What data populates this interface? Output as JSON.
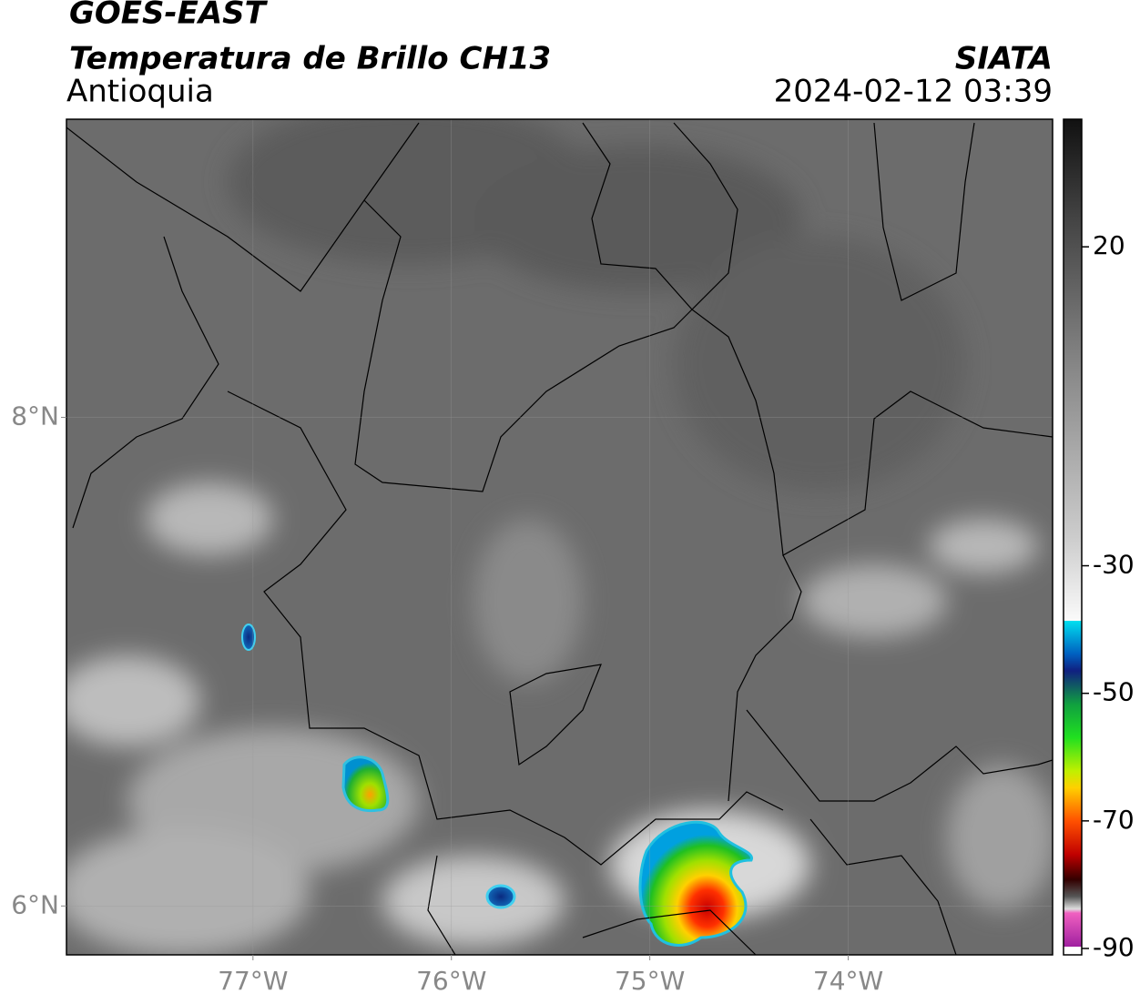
{
  "header": {
    "title": "GOES-EAST",
    "subtitle": "Temperatura de Brillo CH13",
    "region": "Antioquia",
    "source": "SIATA",
    "datetime": "2024-02-12 03:39"
  },
  "map": {
    "xlim": [
      -77.94,
      -72.97
    ],
    "ylim": [
      5.8,
      9.22
    ],
    "xticks": [
      {
        "value": -77,
        "label": "77°W"
      },
      {
        "value": -76,
        "label": "76°W"
      },
      {
        "value": -75,
        "label": "75°W"
      },
      {
        "value": -74,
        "label": "74°W"
      }
    ],
    "yticks": [
      {
        "value": 8,
        "label": "8°N"
      },
      {
        "value": 6,
        "label": "6°N"
      }
    ],
    "grid": true
  },
  "colorbar": {
    "lim": [
      -91,
      40
    ],
    "ticks": [
      20,
      -30,
      -50,
      -70,
      -90
    ]
  }
}
